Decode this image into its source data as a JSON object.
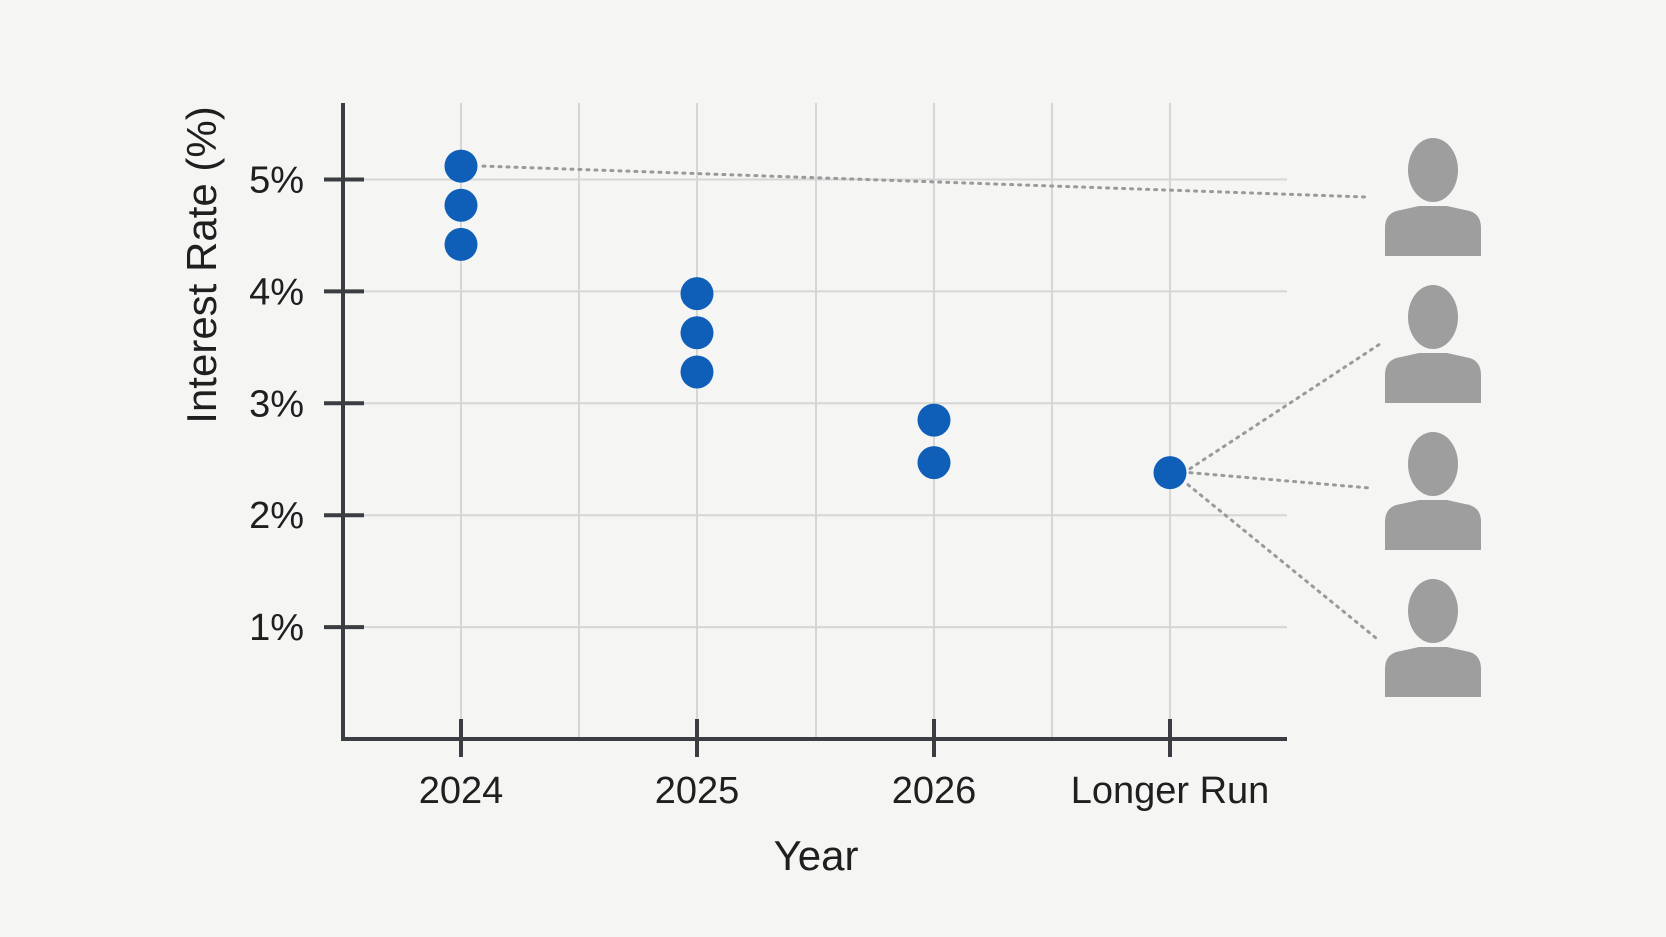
{
  "chart_data": {
    "type": "scatter",
    "title": "",
    "xlabel": "Year",
    "ylabel": "Interest Rate (%)",
    "categories": [
      "2024",
      "2025",
      "2026",
      "Longer Run"
    ],
    "y_ticks": [
      "1%",
      "2%",
      "3%",
      "4%",
      "5%"
    ],
    "y_tick_values": [
      1,
      2,
      3,
      4,
      5
    ],
    "ylim": [
      0,
      5.7
    ],
    "grid": true,
    "points": [
      {
        "x": "2024",
        "y": 5.12
      },
      {
        "x": "2024",
        "y": 4.77
      },
      {
        "x": "2024",
        "y": 4.42
      },
      {
        "x": "2025",
        "y": 3.98
      },
      {
        "x": "2025",
        "y": 3.63
      },
      {
        "x": "2025",
        "y": 3.28
      },
      {
        "x": "2026",
        "y": 2.85
      },
      {
        "x": "2026",
        "y": 2.47
      },
      {
        "x": "Longer Run",
        "y": 2.38
      }
    ],
    "colors": {
      "point": "#0f5fb8",
      "axis": "#3a3d42",
      "grid": "#d6d6d6",
      "connector": "#9a9a9a",
      "person": "#9e9e9e"
    },
    "annotations": {
      "icons": [
        "person-icon",
        "person-icon",
        "person-icon",
        "person-icon"
      ]
    }
  }
}
